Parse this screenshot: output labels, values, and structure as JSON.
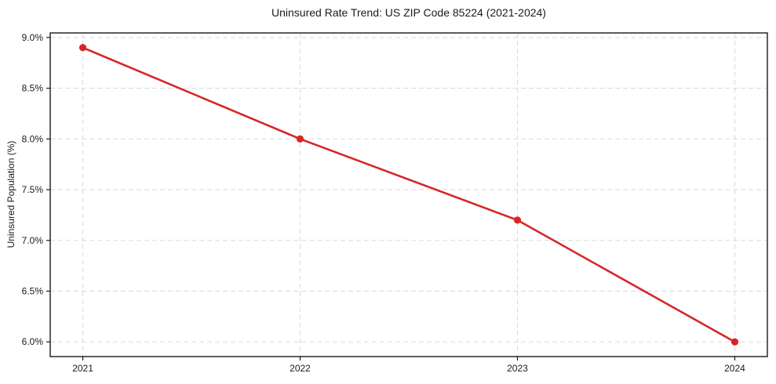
{
  "chart_data": {
    "type": "line",
    "title": "Uninsured Rate Trend: US ZIP Code 85224 (2021-2024)",
    "xlabel": "",
    "ylabel": "Uninsured Population (%)",
    "x": [
      2021,
      2022,
      2023,
      2024
    ],
    "values": [
      8.9,
      8.0,
      7.2,
      6.0
    ],
    "xtick_labels": [
      "2021",
      "2022",
      "2023",
      "2024"
    ],
    "ytick_values": [
      6.0,
      6.5,
      7.0,
      7.5,
      8.0,
      8.5,
      9.0
    ],
    "ytick_labels": [
      "6.0%",
      "6.5%",
      "7.0%",
      "7.5%",
      "8.0%",
      "8.5%",
      "9.0%"
    ],
    "xlim": [
      2020.85,
      2024.15
    ],
    "ylim": [
      5.855,
      9.045
    ],
    "grid": true,
    "legend": "none",
    "line_color": "#d62728",
    "marker": "circle"
  }
}
